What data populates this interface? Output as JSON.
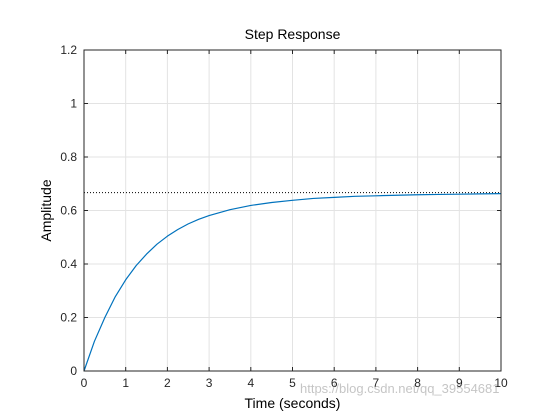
{
  "chart_data": {
    "type": "line",
    "title": "Step Response",
    "xlabel": "Time (seconds)",
    "ylabel": "Amplitude",
    "xlim": [
      0,
      10
    ],
    "ylim": [
      0,
      1.2
    ],
    "xticks": [
      0,
      1,
      2,
      3,
      4,
      5,
      6,
      7,
      8,
      9,
      10
    ],
    "yticks": [
      0,
      0.2,
      0.4,
      0.6,
      0.8,
      1,
      1.2
    ],
    "grid": true,
    "series": [
      {
        "x": [
          0,
          0.25,
          0.5,
          0.75,
          1,
          1.25,
          1.5,
          1.75,
          2,
          2.25,
          2.5,
          2.75,
          3,
          3.5,
          4,
          4.5,
          5,
          5.5,
          6,
          6.5,
          7,
          7.5,
          8,
          8.5,
          9,
          9.5,
          10
        ],
        "y": [
          0,
          0.111,
          0.2,
          0.278,
          0.341,
          0.394,
          0.437,
          0.474,
          0.504,
          0.529,
          0.55,
          0.567,
          0.581,
          0.603,
          0.619,
          0.63,
          0.638,
          0.645,
          0.649,
          0.653,
          0.655,
          0.657,
          0.659,
          0.66,
          0.661,
          0.662,
          0.663
        ],
        "color": "#0072bd"
      }
    ],
    "reference_lines": [
      {
        "y": 0.667,
        "style": "dotted",
        "color": "#000000"
      }
    ]
  },
  "watermark": "https://blog.csdn.net/qq_39554681"
}
